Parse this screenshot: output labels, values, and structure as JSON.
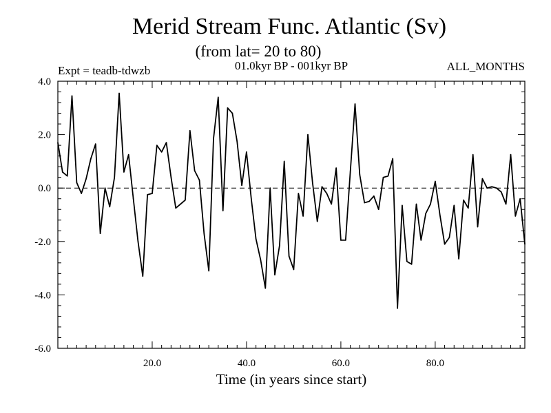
{
  "chart_data": {
    "type": "line",
    "title": "Merid Stream Func. Atlantic (Sv)",
    "subtitle": "(from lat= 20 to 80)",
    "expt_label": "Expt = teadb-tdwzb",
    "period_label": "01.0kyr BP - 001kyr BP",
    "months_label": "ALL_MONTHS",
    "xlabel": "Time (in years since start)",
    "ylabel": "",
    "xlim": [
      0,
      99
    ],
    "ylim": [
      -6.0,
      4.0
    ],
    "xticks": [
      20,
      40,
      60,
      80
    ],
    "xtick_labels": [
      "20.0",
      "40.0",
      "60.0",
      "80.0"
    ],
    "yticks": [
      -6,
      -4,
      -2,
      0,
      2,
      4
    ],
    "ytick_labels": [
      "-6.0",
      "-4.0",
      "-2.0",
      "0.0",
      "2.0",
      "4.0"
    ],
    "reference_line": 0.0,
    "grid": false,
    "series": [
      {
        "name": "Merid Stream Func.",
        "x": [
          0,
          1,
          2,
          3,
          4,
          5,
          6,
          7,
          8,
          9,
          10,
          11,
          12,
          13,
          14,
          15,
          16,
          17,
          18,
          19,
          20,
          21,
          22,
          23,
          24,
          25,
          26,
          27,
          28,
          29,
          30,
          31,
          32,
          33,
          34,
          35,
          36,
          37,
          38,
          39,
          40,
          41,
          42,
          43,
          44,
          45,
          46,
          47,
          48,
          49,
          50,
          51,
          52,
          53,
          54,
          55,
          56,
          57,
          58,
          59,
          60,
          61,
          62,
          63,
          64,
          65,
          66,
          67,
          68,
          69,
          70,
          71,
          72,
          73,
          74,
          75,
          76,
          77,
          78,
          79,
          80,
          81,
          82,
          83,
          84,
          85,
          86,
          87,
          88,
          89,
          90,
          91,
          92,
          93,
          94,
          95,
          96,
          97,
          98,
          99
        ],
        "values": [
          1.7,
          0.6,
          0.45,
          3.45,
          0.2,
          -0.2,
          0.35,
          1.1,
          1.65,
          -1.7,
          0.0,
          -0.7,
          0.4,
          3.55,
          0.6,
          1.25,
          -0.4,
          -2.0,
          -3.3,
          -0.25,
          -0.2,
          1.6,
          1.35,
          1.7,
          0.4,
          -0.75,
          -0.6,
          -0.45,
          2.15,
          0.65,
          0.3,
          -1.7,
          -3.1,
          1.85,
          3.4,
          -0.85,
          3.0,
          2.8,
          1.75,
          0.1,
          1.35,
          -0.4,
          -1.9,
          -2.7,
          -3.75,
          0.0,
          -3.25,
          -2.15,
          1.0,
          -2.55,
          -3.05,
          -0.2,
          -1.05,
          2.0,
          0.2,
          -1.25,
          0.05,
          -0.2,
          -0.6,
          0.75,
          -1.95,
          -1.95,
          0.6,
          3.15,
          0.5,
          -0.55,
          -0.5,
          -0.3,
          -0.8,
          0.4,
          0.45,
          1.1,
          -4.5,
          -0.65,
          -2.75,
          -2.85,
          -0.6,
          -1.95,
          -0.95,
          -0.6,
          0.25,
          -1.0,
          -2.1,
          -1.85,
          -0.65,
          -2.65,
          -0.45,
          -0.75,
          1.25,
          -1.45,
          0.35,
          0.0,
          0.05,
          0.0,
          -0.15,
          -0.6,
          1.25,
          -1.05,
          -0.4,
          -2.1
        ]
      }
    ]
  }
}
